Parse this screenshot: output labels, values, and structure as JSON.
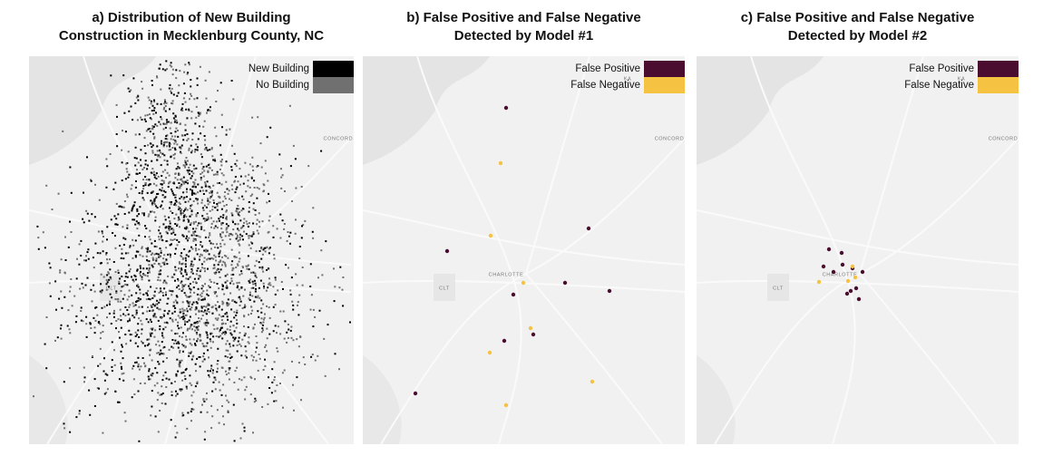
{
  "panels": [
    {
      "title": [
        "a) Distribution of New Building",
        "Construction in Mecklenburg County, NC"
      ],
      "legend": [
        {
          "label": "New Building",
          "color": "#000000"
        },
        {
          "label": "No Building",
          "color": "#707070"
        }
      ],
      "map_labels": [
        "CONCORD",
        "CLT"
      ]
    },
    {
      "title": [
        "b) False Positive and False Negative",
        "Detected by Model #1"
      ],
      "legend": [
        {
          "label": "False Positive",
          "color": "#4a0d2f"
        },
        {
          "label": "False Negative",
          "color": "#f5c242"
        }
      ],
      "map_labels": [
        "CONCORD",
        "CHARLOTTE",
        "CLT",
        "KA"
      ]
    },
    {
      "title": [
        "c) False Positive and False Negative",
        "Detected by Model #2"
      ],
      "legend": [
        {
          "label": "False Positive",
          "color": "#4a0d2f"
        },
        {
          "label": "False Negative",
          "color": "#f5c242"
        }
      ],
      "map_labels": [
        "CONCORD",
        "CHARLOTTE",
        "CLT",
        "KA"
      ]
    }
  ]
}
